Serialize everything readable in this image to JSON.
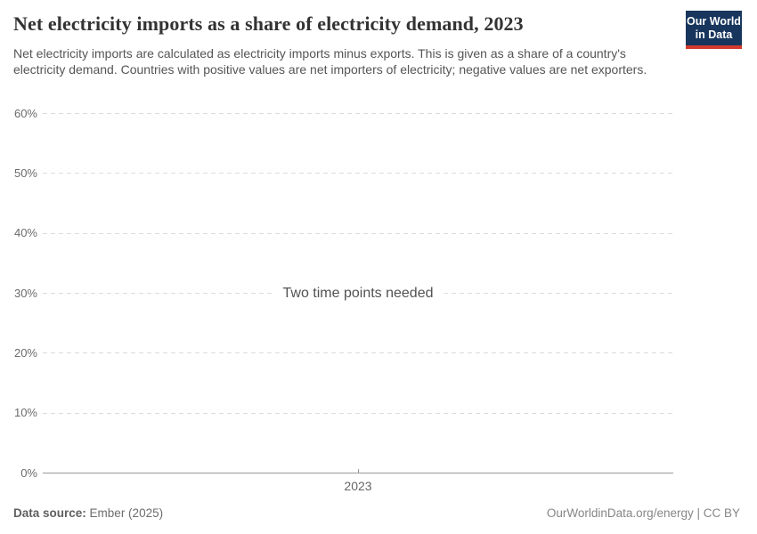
{
  "header": {
    "title": "Net electricity imports as a share of electricity demand, 2023",
    "subtitle": "Net electricity imports are calculated as electricity imports minus exports. This is given as a share of a country's electricity demand. Countries with positive values are net importers of electricity; negative values are net exporters.",
    "logo_line1": "Our World",
    "logo_line2": "in Data"
  },
  "chart_data": {
    "type": "line",
    "title": "Net electricity imports as a share of electricity demand, 2023",
    "series": [],
    "empty_message": "Two time points needed",
    "x_ticks": [
      "2023"
    ],
    "y_ticks": [
      {
        "label": "0%",
        "value": 0
      },
      {
        "label": "10%",
        "value": 10
      },
      {
        "label": "20%",
        "value": 20
      },
      {
        "label": "30%",
        "value": 30
      },
      {
        "label": "40%",
        "value": 40
      },
      {
        "label": "50%",
        "value": 50
      },
      {
        "label": "60%",
        "value": 60
      }
    ],
    "ylim": [
      0,
      60
    ],
    "xlabel": "",
    "ylabel": "",
    "grid": "horizontal-dashed",
    "legend": "none"
  },
  "footer": {
    "source_label": "Data source:",
    "source_value": "Ember (2025)",
    "credit": "OurWorldinData.org/energy | CC BY"
  },
  "colors": {
    "logo_navy": "#18365d",
    "logo_red": "#d4392d",
    "gridline": "#dcdcdc",
    "axis_line": "#999999",
    "title_text": "#333333",
    "subtitle_text": "#555555",
    "tick_text": "#666666",
    "footer_text": "#6d6d6d"
  }
}
